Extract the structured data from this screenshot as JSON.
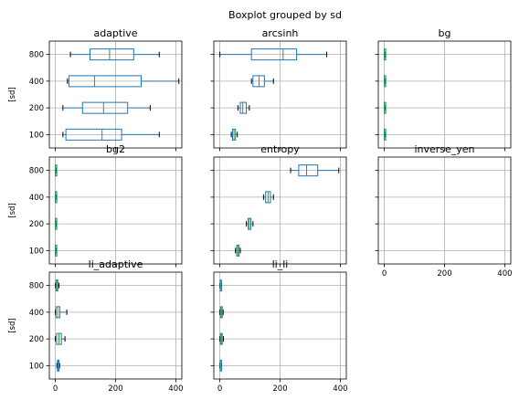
{
  "figure_title": "Boxplot grouped by sd",
  "colors": {
    "box": "#1f77b4",
    "median": "#2ca02c",
    "grid": "#b0b0b0",
    "cap": "#000000",
    "axis": "#000000"
  },
  "chart_data": [
    {
      "type": "boxplot",
      "title": "adaptive",
      "ylabel": "[sd]",
      "xlim": [
        -20,
        420
      ],
      "xticks": [
        0,
        200,
        400
      ],
      "show_xtick_labels": false,
      "show_ytick_labels": true,
      "grid": true,
      "orientation": "horizontal",
      "categories": [
        "100",
        "200",
        "400",
        "800"
      ],
      "boxes": [
        {
          "whislo": 25,
          "q1": 35,
          "med": 155,
          "q3": 220,
          "whishi": 345
        },
        {
          "whislo": 25,
          "q1": 90,
          "med": 160,
          "q3": 240,
          "whishi": 315
        },
        {
          "whislo": 40,
          "q1": 45,
          "med": 130,
          "q3": 285,
          "whishi": 410
        },
        {
          "whislo": 50,
          "q1": 115,
          "med": 180,
          "q3": 260,
          "whishi": 345
        }
      ]
    },
    {
      "type": "boxplot",
      "title": "arcsinh",
      "ylabel": "",
      "xlim": [
        -20,
        420
      ],
      "xticks": [
        0,
        200,
        400
      ],
      "show_xtick_labels": false,
      "show_ytick_labels": false,
      "grid": true,
      "orientation": "horizontal",
      "categories": [
        "100",
        "200",
        "400",
        "800"
      ],
      "boxes": [
        {
          "whislo": 38,
          "q1": 42,
          "med": 47,
          "q3": 52,
          "whishi": 58
        },
        {
          "whislo": 60,
          "q1": 68,
          "med": 76,
          "q3": 88,
          "whishi": 98
        },
        {
          "whislo": 105,
          "q1": 110,
          "med": 130,
          "q3": 148,
          "whishi": 178
        },
        {
          "whislo": 0,
          "q1": 105,
          "med": 210,
          "q3": 255,
          "whishi": 355
        }
      ]
    },
    {
      "type": "boxplot",
      "title": "bg",
      "ylabel": "",
      "xlim": [
        -20,
        420
      ],
      "xticks": [
        0,
        200,
        400
      ],
      "show_xtick_labels": false,
      "show_ytick_labels": false,
      "grid": true,
      "orientation": "horizontal",
      "categories": [
        "100",
        "200",
        "400",
        "800"
      ],
      "boxes": [
        {
          "whislo": 0,
          "q1": 0,
          "med": 0,
          "q3": 1,
          "whishi": 1
        },
        {
          "whislo": 0,
          "q1": 0,
          "med": 0,
          "q3": 1,
          "whishi": 1
        },
        {
          "whislo": 0,
          "q1": 0,
          "med": 0,
          "q3": 1,
          "whishi": 1
        },
        {
          "whislo": 0,
          "q1": 0,
          "med": 0,
          "q3": 1,
          "whishi": 1
        }
      ]
    },
    {
      "type": "boxplot",
      "title": "bg2",
      "ylabel": "[sd]",
      "xlim": [
        -20,
        420
      ],
      "xticks": [
        0,
        200,
        400
      ],
      "show_xtick_labels": false,
      "show_ytick_labels": true,
      "grid": true,
      "orientation": "horizontal",
      "categories": [
        "100",
        "200",
        "400",
        "800"
      ],
      "boxes": [
        {
          "whislo": 0,
          "q1": 0,
          "med": 0,
          "q3": 1,
          "whishi": 1
        },
        {
          "whislo": 0,
          "q1": 0,
          "med": 0,
          "q3": 1,
          "whishi": 1
        },
        {
          "whislo": 0,
          "q1": 0,
          "med": 0,
          "q3": 1,
          "whishi": 1
        },
        {
          "whislo": 0,
          "q1": 0,
          "med": 0,
          "q3": 1,
          "whishi": 1
        }
      ]
    },
    {
      "type": "boxplot",
      "title": "entropy",
      "ylabel": "",
      "xlim": [
        -20,
        420
      ],
      "xticks": [
        0,
        200,
        400
      ],
      "show_xtick_labels": false,
      "show_ytick_labels": false,
      "grid": true,
      "orientation": "horizontal",
      "categories": [
        "100",
        "200",
        "400",
        "800"
      ],
      "boxes": [
        {
          "whislo": 52,
          "q1": 56,
          "med": 60,
          "q3": 64,
          "whishi": 68
        },
        {
          "whislo": 88,
          "q1": 94,
          "med": 98,
          "q3": 103,
          "whishi": 110
        },
        {
          "whislo": 145,
          "q1": 152,
          "med": 160,
          "q3": 168,
          "whishi": 178
        },
        {
          "whislo": 235,
          "q1": 262,
          "med": 288,
          "q3": 325,
          "whishi": 395
        }
      ]
    },
    {
      "type": "boxplot",
      "title": "inverse_yen",
      "ylabel": "",
      "xlim": [
        -20,
        420
      ],
      "xticks": [
        0,
        200,
        400
      ],
      "show_xtick_labels": true,
      "show_ytick_labels": false,
      "grid": true,
      "orientation": "horizontal",
      "categories": [
        "100",
        "200",
        "400",
        "800"
      ],
      "boxes": []
    },
    {
      "type": "boxplot",
      "title": "li_adaptive",
      "ylabel": "[sd]",
      "xlim": [
        -20,
        420
      ],
      "xticks": [
        0,
        200,
        400
      ],
      "show_xtick_labels": true,
      "show_ytick_labels": true,
      "grid": true,
      "orientation": "horizontal",
      "categories": [
        "100",
        "200",
        "400",
        "800"
      ],
      "boxes": [
        {
          "whislo": 5,
          "q1": 7,
          "med": 9,
          "q3": 12,
          "whishi": 14
        },
        {
          "whislo": 0,
          "q1": 4,
          "med": 12,
          "q3": 20,
          "whishi": 32
        },
        {
          "whislo": 0,
          "q1": 2,
          "med": 8,
          "q3": 15,
          "whishi": 38
        },
        {
          "whislo": 0,
          "q1": 2,
          "med": 5,
          "q3": 8,
          "whishi": 12
        }
      ]
    },
    {
      "type": "boxplot",
      "title": "li_li",
      "ylabel": "",
      "xlim": [
        -20,
        420
      ],
      "xticks": [
        0,
        200,
        400
      ],
      "show_xtick_labels": true,
      "show_ytick_labels": false,
      "grid": true,
      "orientation": "horizontal",
      "categories": [
        "100",
        "200",
        "400",
        "800"
      ],
      "boxes": [
        {
          "whislo": 0,
          "q1": 1,
          "med": 2,
          "q3": 4,
          "whishi": 6
        },
        {
          "whislo": 0,
          "q1": 2,
          "med": 5,
          "q3": 8,
          "whishi": 12
        },
        {
          "whislo": 0,
          "q1": 2,
          "med": 5,
          "q3": 8,
          "whishi": 11
        },
        {
          "whislo": 0,
          "q1": 1,
          "med": 2,
          "q3": 4,
          "whishi": 6
        }
      ]
    }
  ]
}
